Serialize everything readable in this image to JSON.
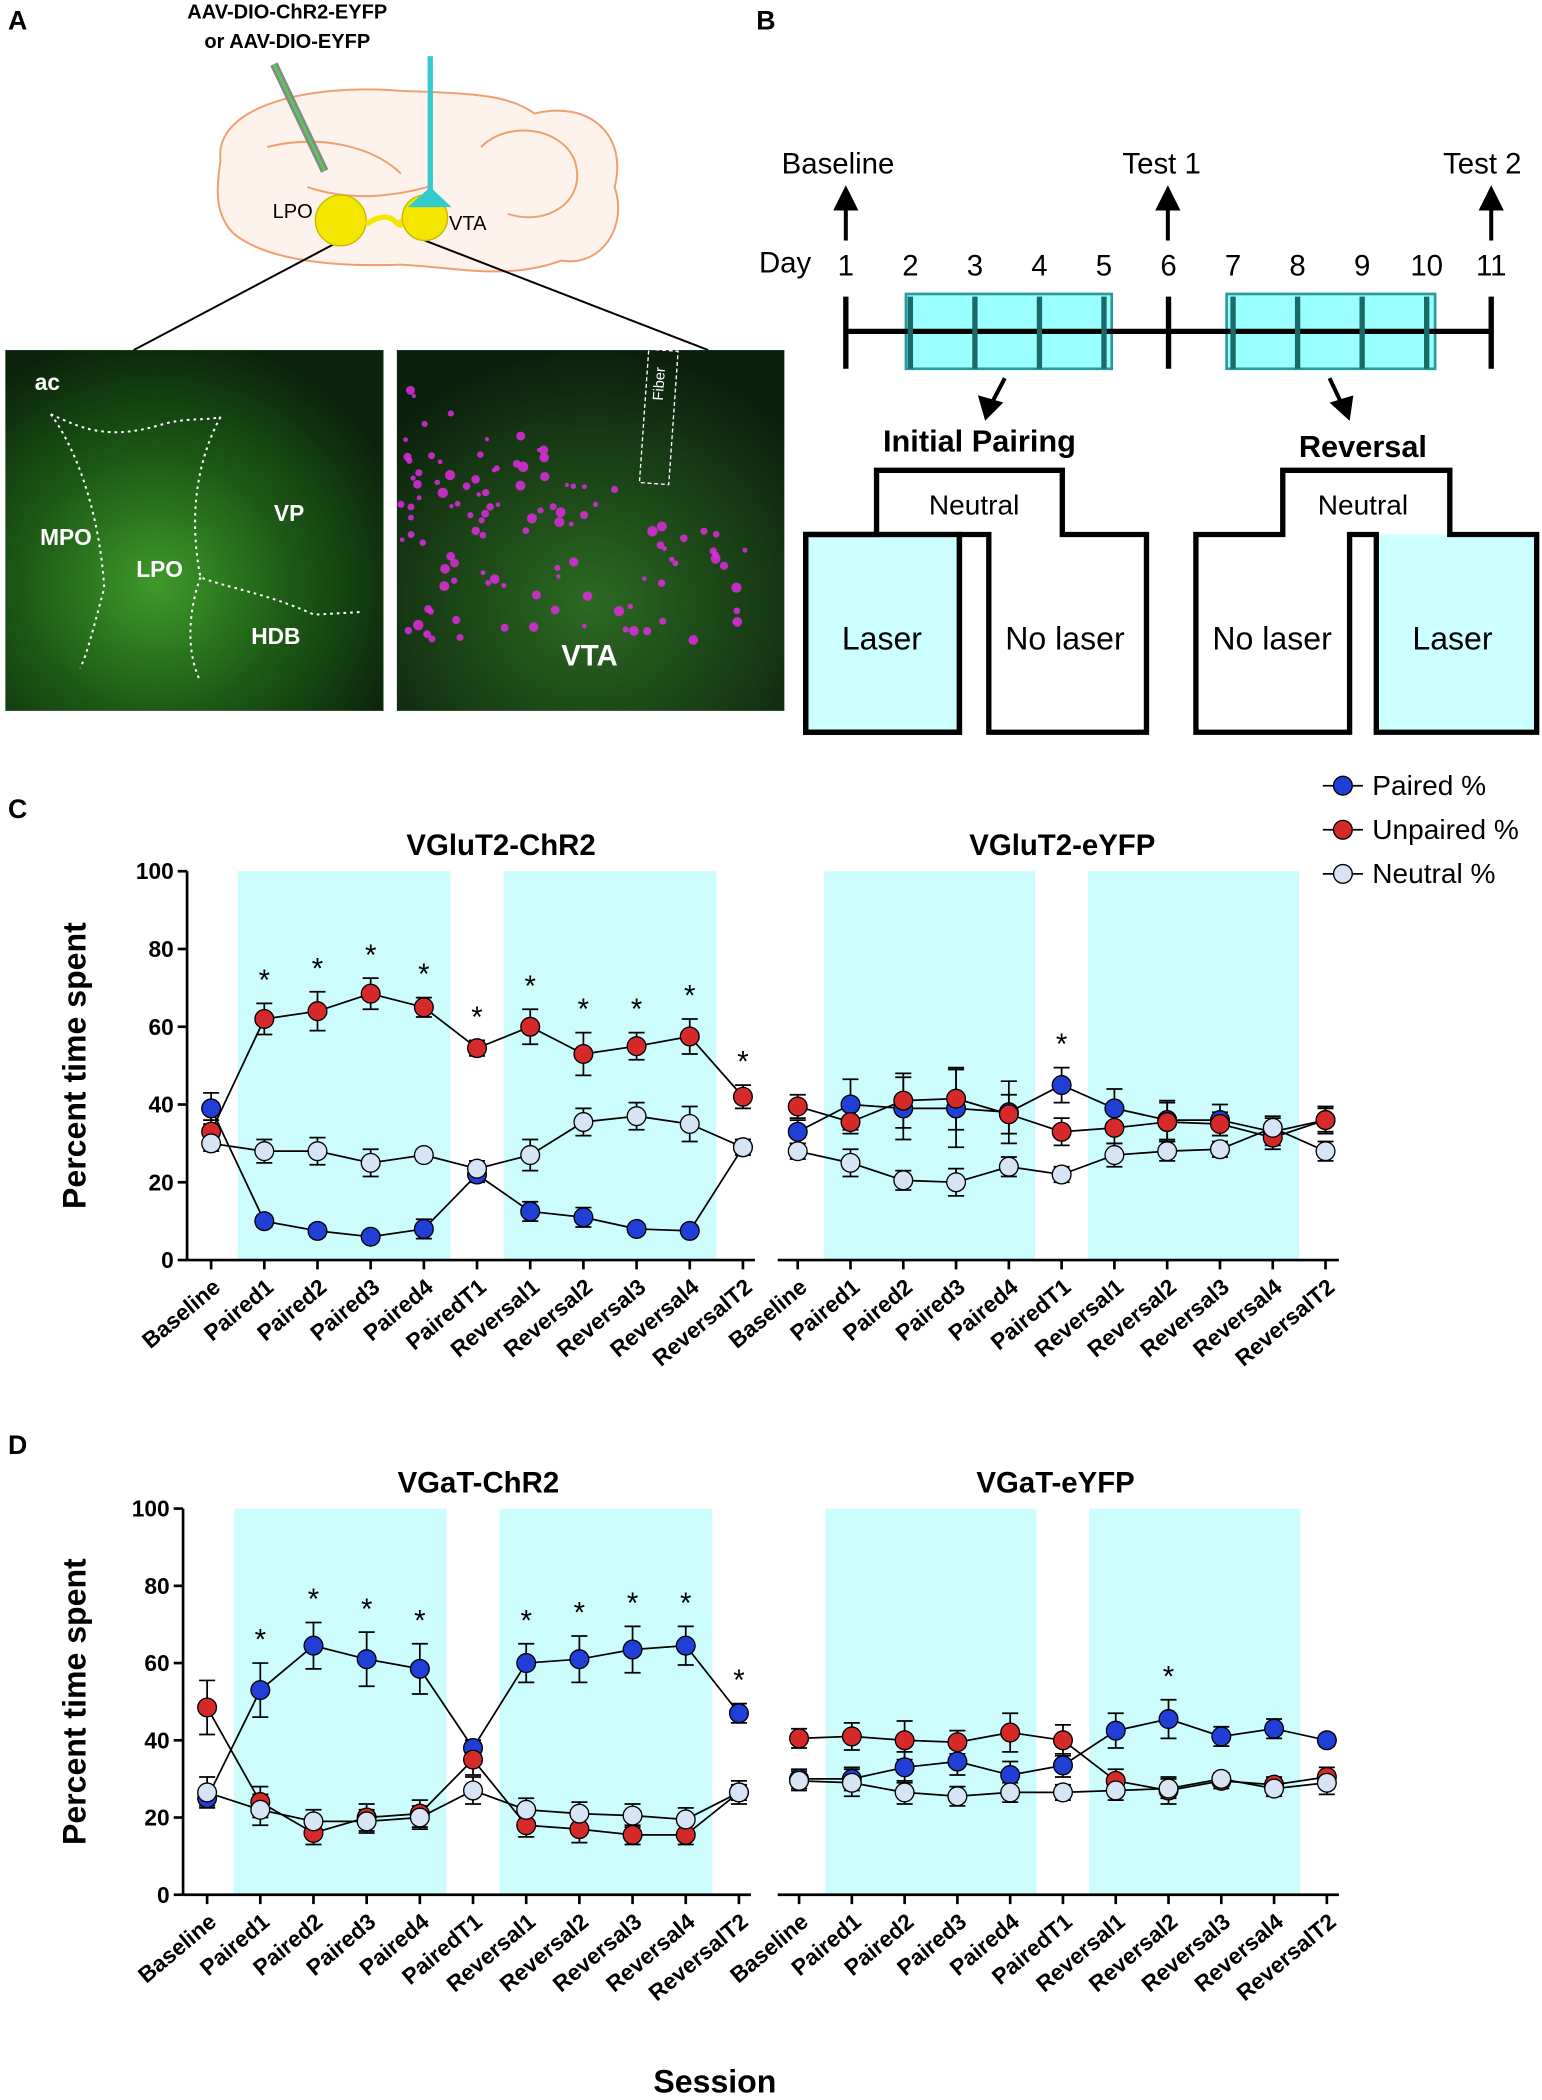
{
  "panel_a": {
    "label": "A",
    "injection": [
      "AAV-DIO-ChR2-EYFP",
      "or AAV-DIO-EYFP"
    ],
    "regions": {
      "lpo": "LPO",
      "vta": "VTA"
    },
    "image_left_labels": {
      "ac": "ac",
      "mpo": "MPO",
      "lpo": "LPO",
      "vp": "VP",
      "hdb": "HDB"
    },
    "image_right_labels": {
      "fiber": "Fiber",
      "vta": "VTA"
    }
  },
  "panel_b": {
    "label": "B",
    "events": [
      "Baseline",
      "Test 1",
      "Test 2"
    ],
    "day_label": "Day",
    "days": [
      1,
      2,
      3,
      4,
      5,
      6,
      7,
      8,
      9,
      10,
      11
    ],
    "phases": [
      "Initial Pairing",
      "Reversal"
    ],
    "maze_1": {
      "top": "Neutral",
      "left": "Laser",
      "right": "No laser"
    },
    "maze_2": {
      "top": "Neutral",
      "left": "No laser",
      "right": "Laser"
    }
  },
  "chart_data": [
    {
      "type": "line",
      "panel": "C",
      "title": "VGluT2-ChR2",
      "y_label": "Percent time spent",
      "ylim": [
        0,
        100
      ],
      "yticks": [
        0,
        20,
        40,
        60,
        80,
        100
      ],
      "categories": [
        "Baseline",
        "Paired1",
        "Paired2",
        "Paired3",
        "Paired4",
        "PairedT1",
        "Reversal1",
        "Reversal2",
        "Reversal3",
        "Reversal4",
        "ReversalT2"
      ],
      "series": [
        {
          "name": "Paired %",
          "color": "#1f3fd6",
          "values": [
            39,
            10,
            7.5,
            6,
            8,
            22,
            12.5,
            11,
            8,
            7.5,
            29
          ],
          "errors": [
            4,
            1.5,
            1.5,
            1,
            2.5,
            2,
            2.5,
            2.5,
            1,
            1,
            2
          ]
        },
        {
          "name": "Unpaired %",
          "color": "#d62a2a",
          "values": [
            33,
            62,
            64,
            68.5,
            65,
            54.5,
            60,
            53,
            55,
            57.5,
            42
          ],
          "errors": [
            3,
            4,
            5,
            4,
            2.5,
            2,
            4.5,
            5.5,
            3.5,
            4.5,
            3
          ]
        },
        {
          "name": "Neutral %",
          "color": "#d6e4f5",
          "values": [
            30,
            28,
            28,
            25,
            27,
            23.5,
            27,
            35.5,
            37,
            35,
            29
          ],
          "errors": [
            2,
            3,
            3.5,
            3.5,
            1.5,
            2,
            4,
            3.5,
            3.5,
            4.5,
            2
          ]
        }
      ],
      "annotations": [
        {
          "x": "Paired1",
          "text": "*"
        },
        {
          "x": "Paired2",
          "text": "*"
        },
        {
          "x": "Paired3",
          "text": "*"
        },
        {
          "x": "Paired4",
          "text": "*"
        },
        {
          "x": "PairedT1",
          "text": "*"
        },
        {
          "x": "Reversal1",
          "text": "*"
        },
        {
          "x": "Reversal2",
          "text": "*"
        },
        {
          "x": "Reversal3",
          "text": "*"
        },
        {
          "x": "Reversal4",
          "text": "*"
        },
        {
          "x": "ReversalT2",
          "text": "*"
        }
      ]
    },
    {
      "type": "line",
      "title": "VGluT2-eYFP",
      "ylim": [
        0,
        100
      ],
      "categories": [
        "Baseline",
        "Paired1",
        "Paired2",
        "Paired3",
        "Paired4",
        "PairedT1",
        "Reversal1",
        "Reversal2",
        "Reversal3",
        "Reversal4",
        "ReversalT2"
      ],
      "series": [
        {
          "color": "#1f3fd6",
          "values": [
            33,
            40,
            39,
            39,
            38,
            45,
            39,
            36,
            36,
            33,
            36
          ],
          "errors": [
            3,
            6.5,
            8,
            10,
            8,
            4.5,
            5,
            5,
            4,
            3.5,
            3.5
          ]
        },
        {
          "color": "#d62a2a",
          "values": [
            39.5,
            35.5,
            41,
            41.5,
            37.5,
            33,
            34,
            35.5,
            35,
            31.5,
            36
          ],
          "errors": [
            3,
            3,
            7,
            8,
            5,
            3.5,
            4,
            5,
            3,
            3,
            3
          ]
        },
        {
          "color": "#d6e4f5",
          "values": [
            28,
            25,
            20.5,
            20,
            24,
            22,
            27,
            28,
            28.5,
            34,
            28
          ],
          "errors": [
            2,
            3.5,
            2.5,
            3.5,
            2.5,
            2,
            3,
            2.5,
            2,
            3,
            2.5
          ]
        }
      ],
      "annotations": [
        {
          "x": "PairedT1",
          "text": "*"
        }
      ]
    },
    {
      "type": "line",
      "panel": "D",
      "title": "VGaT-ChR2",
      "y_label": "Percent time spent",
      "ylim": [
        0,
        100
      ],
      "yticks": [
        0,
        20,
        40,
        60,
        80,
        100
      ],
      "categories": [
        "Baseline",
        "Paired1",
        "Paired2",
        "Paired3",
        "Paired4",
        "PairedT1",
        "Reversal1",
        "Reversal2",
        "Reversal3",
        "Reversal4",
        "ReversalT2"
      ],
      "series": [
        {
          "color": "#1f3fd6",
          "values": [
            25,
            53,
            64.5,
            61,
            58.5,
            38,
            60,
            61,
            63.5,
            64.5,
            47
          ],
          "errors": [
            2,
            7,
            6,
            7,
            6.5,
            2,
            5,
            6,
            6,
            5,
            2.5
          ]
        },
        {
          "color": "#d62a2a",
          "values": [
            48.5,
            24,
            16,
            20,
            21,
            35,
            18,
            17,
            15.5,
            15.5,
            26.5
          ],
          "errors": [
            7,
            4,
            3,
            3.5,
            3.5,
            4,
            3,
            3.5,
            2.5,
            2.5,
            3
          ]
        },
        {
          "color": "#d6e4f5",
          "values": [
            26.5,
            22,
            19,
            19,
            20,
            27,
            22,
            21,
            20.5,
            19.5,
            26.5
          ],
          "errors": [
            4,
            4,
            3,
            3,
            3,
            3.5,
            3,
            3,
            3,
            3,
            2
          ]
        }
      ],
      "annotations": [
        {
          "x": "Paired1",
          "text": "*"
        },
        {
          "x": "Paired2",
          "text": "*"
        },
        {
          "x": "Paired3",
          "text": "*"
        },
        {
          "x": "Paired4",
          "text": "*"
        },
        {
          "x": "Reversal1",
          "text": "*"
        },
        {
          "x": "Reversal2",
          "text": "*"
        },
        {
          "x": "Reversal3",
          "text": "*"
        },
        {
          "x": "Reversal4",
          "text": "*"
        },
        {
          "x": "ReversalT2",
          "text": "*"
        }
      ]
    },
    {
      "type": "line",
      "title": "VGaT-eYFP",
      "x_label": "Session",
      "ylim": [
        0,
        100
      ],
      "categories": [
        "Baseline",
        "Paired1",
        "Paired2",
        "Paired3",
        "Paired4",
        "PairedT1",
        "Reversal1",
        "Reversal2",
        "Reversal3",
        "Reversal4",
        "ReversalT2"
      ],
      "series": [
        {
          "color": "#1f3fd6",
          "values": [
            30,
            30,
            33,
            34.5,
            31,
            33.5,
            42.5,
            45.5,
            41,
            43,
            40
          ],
          "errors": [
            2.5,
            3,
            4,
            3.5,
            3.5,
            3,
            4.5,
            5,
            2.5,
            2.5,
            1.5
          ]
        },
        {
          "color": "#d62a2a",
          "values": [
            40.5,
            41,
            40,
            39.5,
            42,
            40,
            29.5,
            27,
            29.5,
            28.5,
            30.5
          ],
          "errors": [
            2.5,
            3.5,
            5,
            3,
            5,
            4,
            3,
            3.5,
            2,
            2,
            2.5
          ]
        },
        {
          "color": "#d6e4f5",
          "values": [
            29.5,
            29,
            26.5,
            25.5,
            26.5,
            26.5,
            27,
            27.5,
            30,
            27.5,
            29
          ],
          "errors": [
            2.5,
            3.5,
            3,
            2.5,
            2.5,
            2,
            2.5,
            2.5,
            1.5,
            2,
            3
          ]
        }
      ],
      "annotations": [
        {
          "x": "Reversal2",
          "text": "*"
        }
      ]
    }
  ]
}
